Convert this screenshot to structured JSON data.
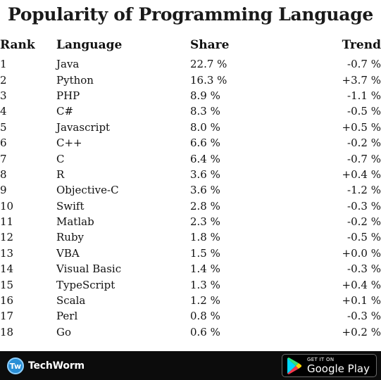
{
  "title": "Popularity of Programming Language",
  "headers": {
    "rank": "Rank",
    "language": "Language",
    "share": "Share",
    "trend": "Trend"
  },
  "rows": [
    {
      "rank": "1",
      "language": "Java",
      "share": "22.7 %",
      "trend": "-0.7 %"
    },
    {
      "rank": "2",
      "language": "Python",
      "share": "16.3 %",
      "trend": "+3.7 %"
    },
    {
      "rank": "3",
      "language": "PHP",
      "share": "8.9 %",
      "trend": "-1.1 %"
    },
    {
      "rank": "4",
      "language": "C#",
      "share": "8.3 %",
      "trend": "-0.5 %"
    },
    {
      "rank": "5",
      "language": "Javascript",
      "share": "8.0 %",
      "trend": "+0.5 %"
    },
    {
      "rank": "6",
      "language": "C++",
      "share": "6.6 %",
      "trend": "-0.2 %"
    },
    {
      "rank": "7",
      "language": "C",
      "share": "6.4 %",
      "trend": "-0.7 %"
    },
    {
      "rank": "8",
      "language": "R",
      "share": "3.6 %",
      "trend": "+0.4 %"
    },
    {
      "rank": "9",
      "language": "Objective-C",
      "share": "3.6 %",
      "trend": "-1.2 %"
    },
    {
      "rank": "10",
      "language": "Swift",
      "share": "2.8 %",
      "trend": "-0.3 %"
    },
    {
      "rank": "11",
      "language": "Matlab",
      "share": "2.3 %",
      "trend": "-0.2 %"
    },
    {
      "rank": "12",
      "language": "Ruby",
      "share": "1.8 %",
      "trend": "-0.5 %"
    },
    {
      "rank": "13",
      "language": "VBA",
      "share": "1.5 %",
      "trend": "+0.0 %"
    },
    {
      "rank": "14",
      "language": "Visual Basic",
      "share": "1.4 %",
      "trend": "-0.3 %"
    },
    {
      "rank": "15",
      "language": "TypeScript",
      "share": "1.3 %",
      "trend": "+0.4 %"
    },
    {
      "rank": "16",
      "language": "Scala",
      "share": "1.2 %",
      "trend": "+0.1 %"
    },
    {
      "rank": "17",
      "language": "Perl",
      "share": "0.8 %",
      "trend": "-0.3 %"
    },
    {
      "rank": "18",
      "language": "Go",
      "share": "0.6 %",
      "trend": "+0.2 %"
    }
  ],
  "footer": {
    "brand": {
      "logo_text": "Tw",
      "name": "TechWorm",
      "logo_color": "#2a8fd6"
    },
    "store": {
      "small_text": "GET IT ON",
      "big_text": "Google Play",
      "icon": "google-play-icon"
    }
  }
}
